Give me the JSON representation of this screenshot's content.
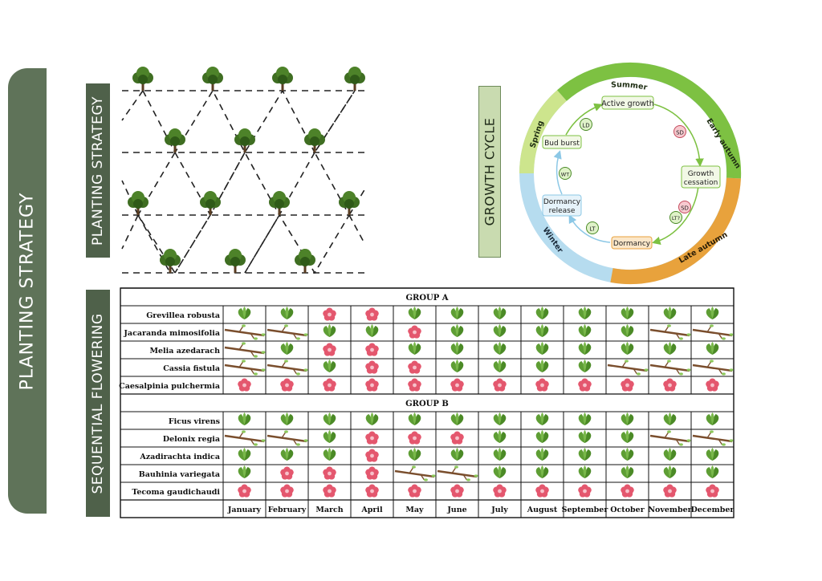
{
  "sidebar": {
    "title": "PLANTING STRATEGY"
  },
  "panels": {
    "planting_strategy": "PLANTING STRATEGY",
    "sequential_flowering": "SEQUENTIAL FLOWERING",
    "growth_cycle": "GROWTH CYCLE"
  },
  "cycle": {
    "seasons": {
      "summer": "Summer",
      "early_autumn": "Early autumn",
      "late_autumn": "Late autumn",
      "winter": "Winter",
      "spring": "Spring"
    },
    "stages": {
      "active_growth": "Active growth",
      "growth_cessation_1": "Growth",
      "growth_cessation_2": "cessation",
      "dormancy": "Dormancy",
      "dormancy_release_1": "Dormancy",
      "dormancy_release_2": "release",
      "bud_burst": "Bud burst"
    },
    "signals": {
      "ld": "LD",
      "sd1": "SD",
      "sd2": "SD",
      "lt_q": "LT?",
      "lt": "LT",
      "wt": "WT"
    }
  },
  "table": {
    "months": [
      "January",
      "February",
      "March",
      "April",
      "May",
      "June",
      "July",
      "August",
      "September",
      "October",
      "November",
      "December"
    ],
    "groups": [
      {
        "name": "GROUP A",
        "rows": [
          {
            "species": "Grevillea robusta",
            "states": [
              "L",
              "L",
              "F",
              "F",
              "L",
              "L",
              "L",
              "L",
              "L",
              "L",
              "L",
              "L"
            ]
          },
          {
            "species": "Jacaranda mimosifolia",
            "states": [
              "B",
              "B",
              "L",
              "L",
              "F",
              "L",
              "L",
              "L",
              "L",
              "L",
              "B",
              "B"
            ]
          },
          {
            "species": "Melia azedarach",
            "states": [
              "B",
              "L",
              "F",
              "F",
              "L",
              "L",
              "L",
              "L",
              "L",
              "L",
              "L",
              "L"
            ]
          },
          {
            "species": "Cassia fistula",
            "states": [
              "B",
              "B",
              "L",
              "F",
              "F",
              "L",
              "L",
              "L",
              "L",
              "B",
              "B",
              "B"
            ]
          },
          {
            "species": "Caesalpinia pulchermia",
            "states": [
              "F",
              "F",
              "F",
              "F",
              "F",
              "F",
              "F",
              "F",
              "F",
              "F",
              "F",
              "F"
            ]
          }
        ]
      },
      {
        "name": "GROUP B",
        "rows": [
          {
            "species": "Ficus virens",
            "states": [
              "L",
              "L",
              "L",
              "L",
              "L",
              "L",
              "L",
              "L",
              "L",
              "L",
              "L",
              "L"
            ]
          },
          {
            "species": "Delonix regia",
            "states": [
              "B",
              "B",
              "L",
              "F",
              "F",
              "F",
              "L",
              "L",
              "L",
              "L",
              "B",
              "B"
            ]
          },
          {
            "species": "Azadirachta indica",
            "states": [
              "L",
              "L",
              "L",
              "F",
              "L",
              "L",
              "L",
              "L",
              "L",
              "L",
              "L",
              "L"
            ]
          },
          {
            "species": "Bauhinia variegata",
            "states": [
              "L",
              "F",
              "F",
              "F",
              "B",
              "B",
              "L",
              "L",
              "L",
              "L",
              "L",
              "L"
            ]
          },
          {
            "species": "Tecoma gaudichaudi",
            "states": [
              "F",
              "F",
              "F",
              "F",
              "F",
              "F",
              "F",
              "F",
              "F",
              "F",
              "F",
              "F"
            ]
          }
        ]
      }
    ]
  },
  "colors": {
    "sidebar": "#5f7359",
    "tab": "#4f614a",
    "leaf": "#5e9e34",
    "flower": "#e4576e",
    "summer": "#7dc142",
    "spring": "#cde58d",
    "autumn": "#e8a23c",
    "winter": "#b6dcef"
  }
}
